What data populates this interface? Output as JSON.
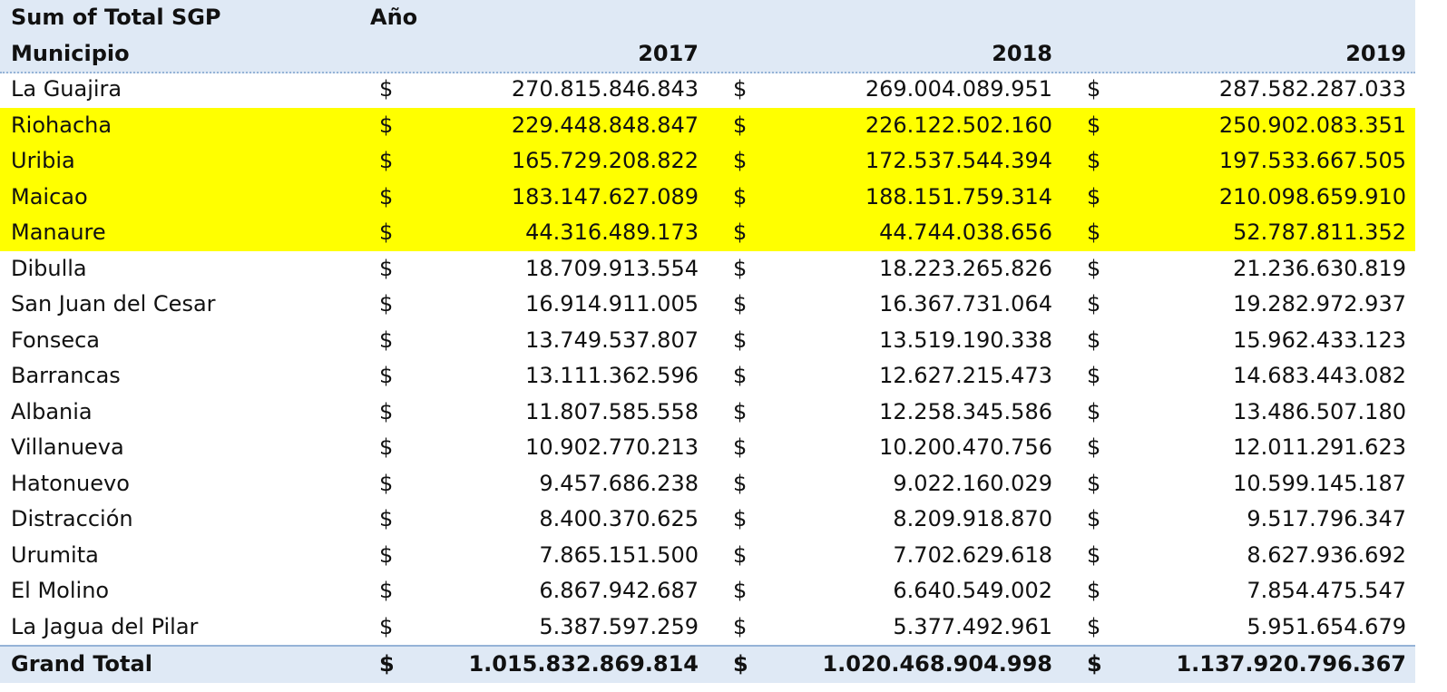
{
  "header": {
    "title": "Sum of Total SGP",
    "column_label": "Año",
    "row_label": "Municipio",
    "years": [
      "2017",
      "2018",
      "2019"
    ]
  },
  "currency": "$",
  "rows": [
    {
      "name": "La Guajira",
      "values": [
        "270.815.846.843",
        "269.004.089.951",
        "287.582.287.033"
      ],
      "highlight": false
    },
    {
      "name": "Riohacha",
      "values": [
        "229.448.848.847",
        "226.122.502.160",
        "250.902.083.351"
      ],
      "highlight": true
    },
    {
      "name": "Uribia",
      "values": [
        "165.729.208.822",
        "172.537.544.394",
        "197.533.667.505"
      ],
      "highlight": true
    },
    {
      "name": "Maicao",
      "values": [
        "183.147.627.089",
        "188.151.759.314",
        "210.098.659.910"
      ],
      "highlight": true
    },
    {
      "name": "Manaure",
      "values": [
        "44.316.489.173",
        "44.744.038.656",
        "52.787.811.352"
      ],
      "highlight": true
    },
    {
      "name": "Dibulla",
      "values": [
        "18.709.913.554",
        "18.223.265.826",
        "21.236.630.819"
      ],
      "highlight": false
    },
    {
      "name": "San Juan del Cesar",
      "values": [
        "16.914.911.005",
        "16.367.731.064",
        "19.282.972.937"
      ],
      "highlight": false
    },
    {
      "name": "Fonseca",
      "values": [
        "13.749.537.807",
        "13.519.190.338",
        "15.962.433.123"
      ],
      "highlight": false
    },
    {
      "name": "Barrancas",
      "values": [
        "13.111.362.596",
        "12.627.215.473",
        "14.683.443.082"
      ],
      "highlight": false
    },
    {
      "name": "Albania",
      "values": [
        "11.807.585.558",
        "12.258.345.586",
        "13.486.507.180"
      ],
      "highlight": false
    },
    {
      "name": "Villanueva",
      "values": [
        "10.902.770.213",
        "10.200.470.756",
        "12.011.291.623"
      ],
      "highlight": false
    },
    {
      "name": "Hatonuevo",
      "values": [
        "9.457.686.238",
        "9.022.160.029",
        "10.599.145.187"
      ],
      "highlight": false
    },
    {
      "name": "Distracción",
      "values": [
        "8.400.370.625",
        "8.209.918.870",
        "9.517.796.347"
      ],
      "highlight": false
    },
    {
      "name": "Urumita",
      "values": [
        "7.865.151.500",
        "7.702.629.618",
        "8.627.936.692"
      ],
      "highlight": false
    },
    {
      "name": "El Molino",
      "values": [
        "6.867.942.687",
        "6.640.549.002",
        "7.854.475.547"
      ],
      "highlight": false
    },
    {
      "name": "La Jagua del Pilar",
      "values": [
        "5.387.597.259",
        "5.377.492.961",
        "5.951.654.679"
      ],
      "highlight": false
    }
  ],
  "grand_total": {
    "label": "Grand Total",
    "values": [
      "1.015.832.869.814",
      "1.020.468.904.998",
      "1.137.920.796.367"
    ]
  }
}
